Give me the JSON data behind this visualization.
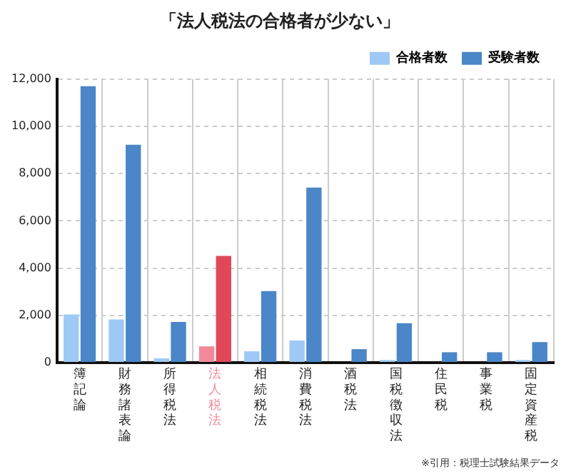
{
  "chart_data": {
    "type": "bar",
    "title": "「法人税法の合格者が少ない」",
    "categories": [
      "簿記論",
      "財務諸表論",
      "所得税法",
      "法人税法",
      "相続税法",
      "消費税法",
      "酒税法",
      "国税徴収法",
      "住民税",
      "事業税",
      "固定資産税"
    ],
    "series": [
      {
        "name": "合格者数",
        "color": "#9ec9f5",
        "colors": [
          "#9ec9f5",
          "#9ec9f5",
          "#9ec9f5",
          "#f08a9a",
          "#9ec9f5",
          "#9ec9f5",
          "#9ec9f5",
          "#9ec9f5",
          "#9ec9f5",
          "#9ec9f5",
          "#9ec9f5"
        ],
        "values": [
          2040,
          1830,
          180,
          690,
          480,
          940,
          null,
          110,
          null,
          null,
          110
        ]
      },
      {
        "name": "受験者数",
        "color": "#4a86c8",
        "colors": [
          "#4a86c8",
          "#4a86c8",
          "#4a86c8",
          "#e04858",
          "#4a86c8",
          "#4a86c8",
          "#4a86c8",
          "#4a86c8",
          "#4a86c8",
          "#4a86c8",
          "#4a86c8"
        ],
        "values": [
          11700,
          9220,
          1720,
          4520,
          3030,
          7410,
          570,
          1670,
          440,
          440,
          870
        ]
      }
    ],
    "ylim": [
      0,
      12000
    ],
    "yticks": [
      0,
      {
        "value": 2000,
        "label": "2,000"
      },
      {
        "value": 4000,
        "label": "4,000"
      },
      {
        "value": 6000,
        "label": "6,000"
      },
      {
        "value": 8000,
        "label": "8,000"
      },
      {
        "value": 10000,
        "label": "10,000"
      },
      {
        "value": 12000,
        "label": "12,000"
      }
    ],
    "grid": true,
    "legend": "top right",
    "annotations": [
      "※引用：税理士試験結果データ"
    ]
  }
}
